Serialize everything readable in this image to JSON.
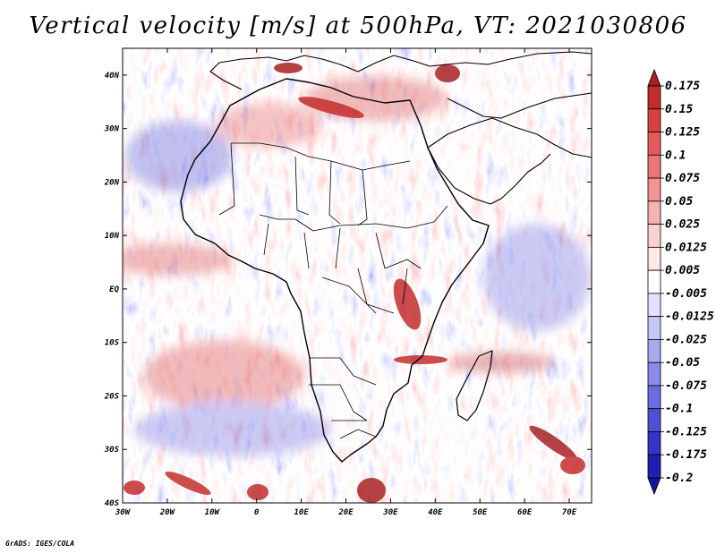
{
  "title": "Vertical velocity [m/s] at 500hPa, VT: 2021030806",
  "credit": "GrADS: IGES/COLA",
  "map": {
    "variable": "Vertical velocity",
    "units": "m/s",
    "level": "500hPa",
    "valid_time": "2021030806",
    "lon_range": [
      -30,
      75
    ],
    "lat_range": [
      -40,
      45
    ],
    "lat_ticks": [
      {
        "value": 40,
        "label": "40N"
      },
      {
        "value": 30,
        "label": "30N"
      },
      {
        "value": 20,
        "label": "20N"
      },
      {
        "value": 10,
        "label": "10N"
      },
      {
        "value": 0,
        "label": "EQ"
      },
      {
        "value": -10,
        "label": "10S"
      },
      {
        "value": -20,
        "label": "20S"
      },
      {
        "value": -30,
        "label": "30S"
      },
      {
        "value": -40,
        "label": "40S"
      }
    ],
    "lon_ticks": [
      {
        "value": -30,
        "label": "30W"
      },
      {
        "value": -20,
        "label": "20W"
      },
      {
        "value": -10,
        "label": "10W"
      },
      {
        "value": 0,
        "label": "0"
      },
      {
        "value": 10,
        "label": "10E"
      },
      {
        "value": 20,
        "label": "20E"
      },
      {
        "value": 30,
        "label": "30E"
      },
      {
        "value": 40,
        "label": "40E"
      },
      {
        "value": 50,
        "label": "50E"
      },
      {
        "value": 60,
        "label": "60E"
      },
      {
        "value": 70,
        "label": "70E"
      }
    ]
  },
  "colorbar": {
    "levels": [
      {
        "label": "0.175",
        "color": "#a82020"
      },
      {
        "label": "0.15",
        "color": "#c42c2c"
      },
      {
        "label": "0.125",
        "color": "#d84040"
      },
      {
        "label": "0.1",
        "color": "#e45a5a"
      },
      {
        "label": "0.075",
        "color": "#ec7676"
      },
      {
        "label": "0.05",
        "color": "#f29494"
      },
      {
        "label": "0.025",
        "color": "#f6b2b2"
      },
      {
        "label": "0.0125",
        "color": "#fad0d0"
      },
      {
        "label": "0.005",
        "color": "#fde8e8"
      },
      {
        "label": "-0.005",
        "color": "#ffffff"
      },
      {
        "label": "-0.0125",
        "color": "#e2e2fc"
      },
      {
        "label": "-0.025",
        "color": "#c6c6f8"
      },
      {
        "label": "-0.05",
        "color": "#a8a8f2"
      },
      {
        "label": "-0.075",
        "color": "#8a8aec"
      },
      {
        "label": "-0.1",
        "color": "#6c6ce2"
      },
      {
        "label": "-0.125",
        "color": "#5050d6"
      },
      {
        "label": "-0.175",
        "color": "#3434c6"
      },
      {
        "label": "-0.2",
        "color": "#2020b0"
      },
      {
        "label": "",
        "color": "#1414a0"
      }
    ]
  }
}
